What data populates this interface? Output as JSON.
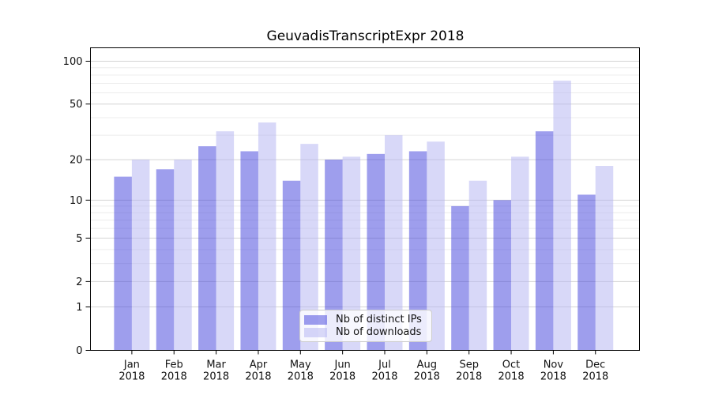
{
  "title": "GeuvadisTranscriptExpr 2018",
  "legend": {
    "items": [
      {
        "label": "Nb of distinct IPs",
        "series": "ips"
      },
      {
        "label": "Nb of downloads",
        "series": "downloads"
      }
    ]
  },
  "colors": {
    "ips_fill": "rgba(62,62,220,0.5)",
    "downloads_fill": "rgba(178,178,242,0.5)",
    "grid_major": "#d4d4d4",
    "grid_minor": "#ececec",
    "axis": "#000000",
    "text": "#111111"
  },
  "chart_data": {
    "type": "bar",
    "title": "GeuvadisTranscriptExpr 2018",
    "categories": [
      "Jan 2018",
      "Feb 2018",
      "Mar 2018",
      "Apr 2018",
      "May 2018",
      "Jun 2018",
      "Jul 2018",
      "Aug 2018",
      "Sep 2018",
      "Oct 2018",
      "Nov 2018",
      "Dec 2018"
    ],
    "x_tick_months": [
      "Jan",
      "Feb",
      "Mar",
      "Apr",
      "May",
      "Jun",
      "Jul",
      "Aug",
      "Sep",
      "Oct",
      "Nov",
      "Dec"
    ],
    "x_tick_year": "2018",
    "series": [
      {
        "name": "Nb of distinct IPs",
        "values": [
          15,
          17,
          25,
          23,
          14,
          20,
          22,
          23,
          9,
          10,
          32,
          11
        ]
      },
      {
        "name": "Nb of downloads",
        "values": [
          20,
          20,
          32,
          37,
          26,
          21,
          30,
          27,
          14,
          21,
          73,
          18
        ]
      }
    ],
    "xlabel": "",
    "ylabel": "",
    "yscale": "log1p",
    "ylim": [
      0,
      110
    ],
    "y_tick_labels": [
      "100",
      "50",
      "20",
      "10",
      "5",
      "2",
      "1",
      "0"
    ],
    "y_tick_values": [
      100,
      50,
      20,
      10,
      5,
      2,
      1,
      0
    ],
    "y_minor_gridlines": [
      3,
      4,
      6,
      7,
      8,
      9,
      30,
      40,
      60,
      70,
      80,
      90
    ],
    "grid": true,
    "legend_position": "lower-center"
  }
}
